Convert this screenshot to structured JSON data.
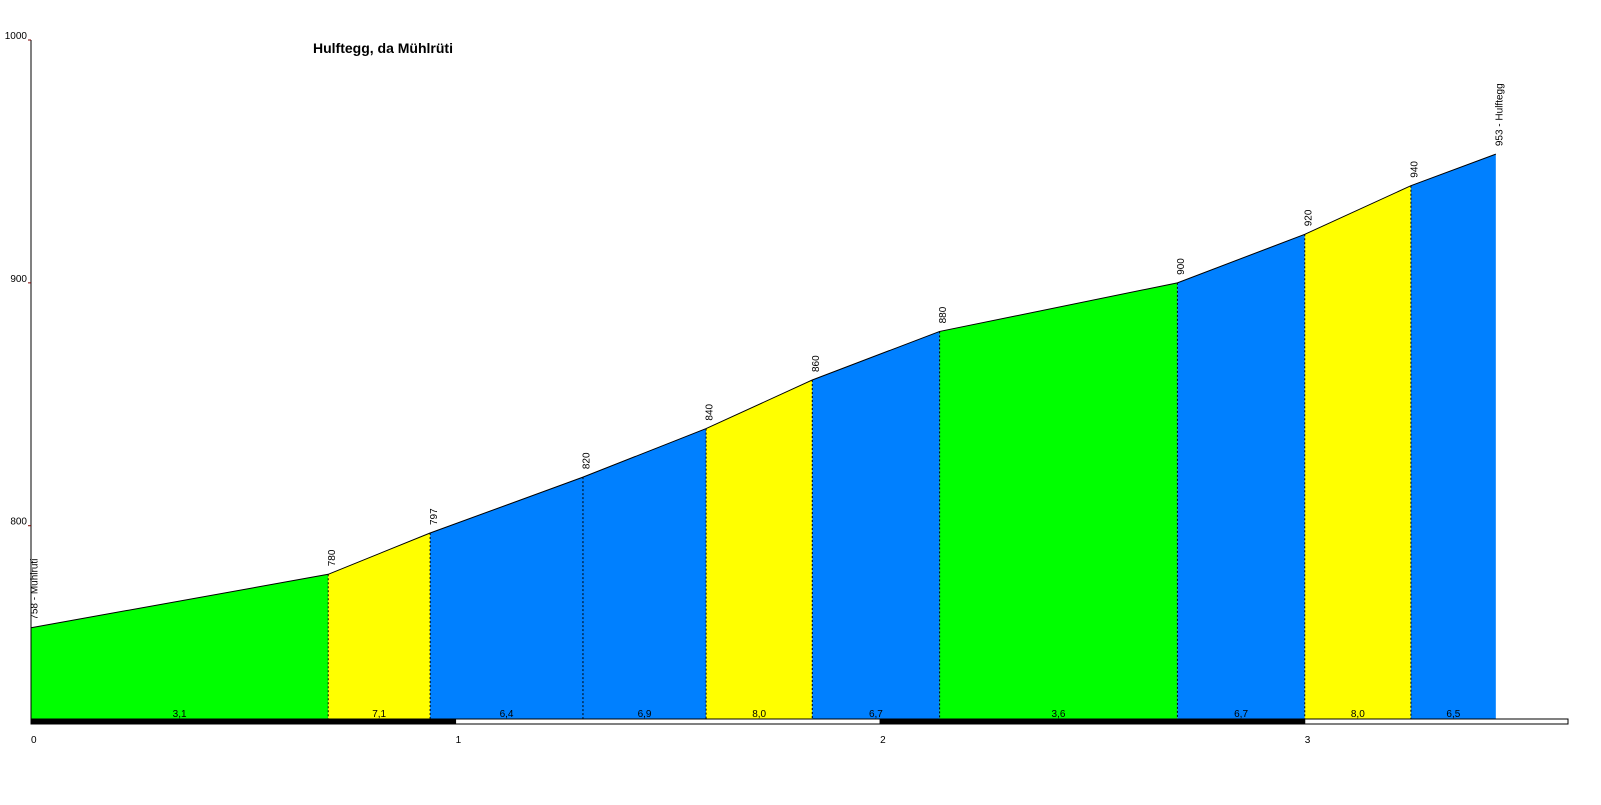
{
  "chart_data": {
    "type": "elevation-profile",
    "title": "Hulftegg, da Mühlrüti",
    "x": [
      0,
      0.7,
      0.94,
      1.3,
      1.59,
      1.84,
      2.14,
      2.7,
      3.0,
      3.25,
      3.45
    ],
    "values": [
      758,
      780,
      797,
      820,
      840,
      860,
      880,
      900,
      920,
      940,
      953
    ],
    "value_labels": [
      "758 - Mühlrüti",
      "780",
      "797",
      "820",
      "840",
      "860",
      "880",
      "900",
      "920",
      "940",
      "953 - Hulftegg"
    ],
    "segments": {
      "values": [
        3.1,
        7.1,
        6.4,
        6.9,
        8.0,
        6.7,
        3.6,
        6.7,
        8.0,
        6.5
      ],
      "value_labels": [
        "3,1",
        "7,1",
        "6,4",
        "6,9",
        "8,0",
        "6,7",
        "3,6",
        "6,7",
        "8,0",
        "6,5"
      ],
      "colors": [
        "#00ff00",
        "#ffff00",
        "#0080ff",
        "#0080ff",
        "#ffff00",
        "#0080ff",
        "#00ff00",
        "#0080ff",
        "#ffff00",
        "#0080ff"
      ]
    },
    "xlim": [
      0,
      3.62
    ],
    "ylim": [
      720,
      1000
    ],
    "xticks": [
      0,
      1,
      2,
      3
    ],
    "yticks": [
      800,
      900,
      1000
    ]
  }
}
